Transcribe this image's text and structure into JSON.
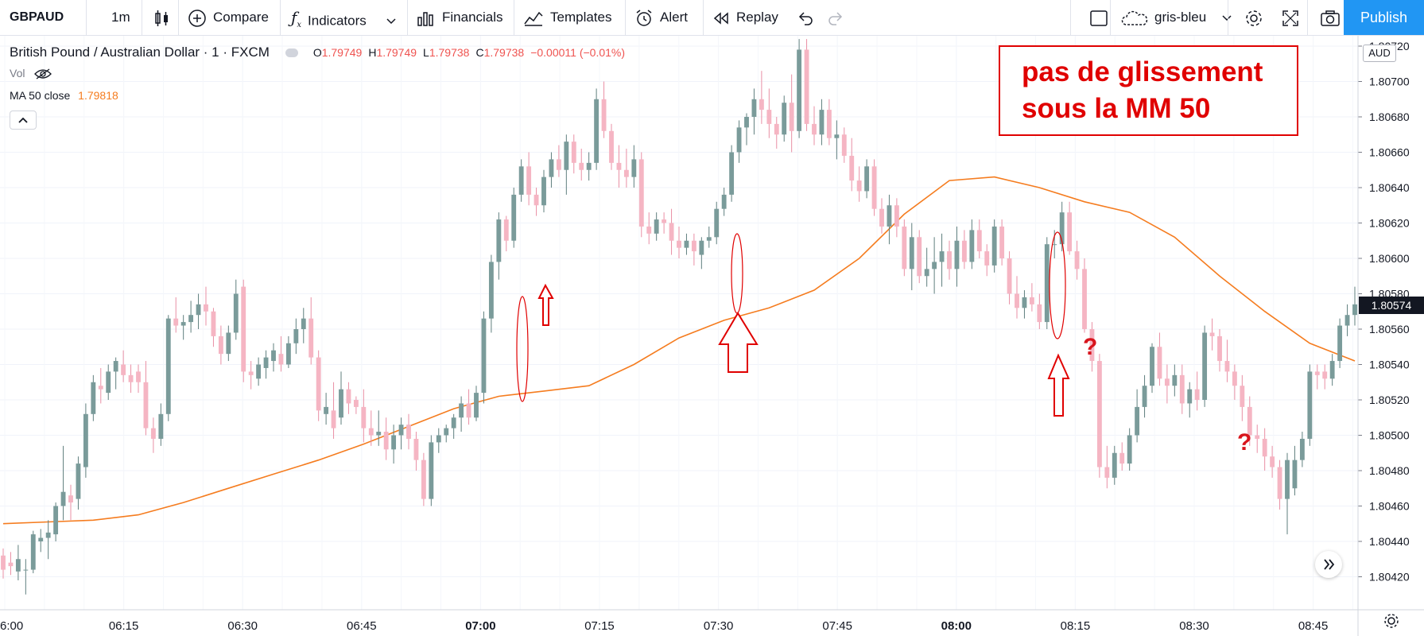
{
  "toolbar": {
    "symbol": "GBPAUD",
    "interval": "1m",
    "compare": "Compare",
    "indicators": "Indicators",
    "financials": "Financials",
    "templates": "Templates",
    "alert": "Alert",
    "replay": "Replay",
    "theme": "gris-bleu",
    "publish": "Publish"
  },
  "legend": {
    "name": "British Pound / Australian Dollar · 1 · FXCM",
    "o_label": "O",
    "o": "1.79749",
    "h_label": "H",
    "h": "1.79749",
    "l_label": "L",
    "l": "1.79738",
    "c_label": "C",
    "c": "1.79738",
    "change": "−0.00011 (−0.01%)",
    "vol": "Vol",
    "ma_label": "MA 50 close",
    "ma_value": "1.79818"
  },
  "annotation": {
    "text": "pas de glissement\nsous la MM 50",
    "question_mark": "?"
  },
  "price_badge": "1.80574",
  "currency": "AUD",
  "colors": {
    "up": "#7a9b9a",
    "down": "#f5b5c3",
    "ma": "#f57c1f",
    "annotation": "#e00000",
    "publish": "#2196f3"
  },
  "chart_data": {
    "type": "candlestick",
    "title": "British Pound / Australian Dollar · 1 · FXCM",
    "x_ticks": [
      "6:00",
      "06:15",
      "06:30",
      "06:45",
      "07:00",
      "07:15",
      "07:30",
      "07:45",
      "08:00",
      "08:15",
      "08:30",
      "08:45"
    ],
    "y_ticks": [
      "1.80720",
      "1.80700",
      "1.80680",
      "1.80660",
      "1.80640",
      "1.80620",
      "1.80600",
      "1.80580",
      "1.80560",
      "1.80540",
      "1.80520",
      "1.80500",
      "1.80480",
      "1.80460",
      "1.80440",
      "1.80420"
    ],
    "ylim": [
      1.80408,
      1.80726
    ],
    "candles": [
      [
        1.80432,
        1.80436,
        1.80419,
        1.80424
      ],
      [
        1.80428,
        1.80434,
        1.80421,
        1.80426
      ],
      [
        1.80423,
        1.80438,
        1.80418,
        1.8043
      ],
      [
        1.80424,
        1.8043,
        1.8041,
        1.80424
      ],
      [
        1.80424,
        1.80446,
        1.80422,
        1.80444
      ],
      [
        1.8044,
        1.80447,
        1.80434,
        1.80442
      ],
      [
        1.80442,
        1.80452,
        1.8043,
        1.80445
      ],
      [
        1.80444,
        1.80462,
        1.8044,
        1.8046
      ],
      [
        1.8046,
        1.80494,
        1.80452,
        1.80468
      ],
      [
        1.80466,
        1.80472,
        1.80452,
        1.80462
      ],
      [
        1.80464,
        1.80488,
        1.80458,
        1.80484
      ],
      [
        1.80482,
        1.80518,
        1.80476,
        1.80512
      ],
      [
        1.80512,
        1.80534,
        1.80508,
        1.8053
      ],
      [
        1.80528,
        1.80538,
        1.80518,
        1.80526
      ],
      [
        1.80524,
        1.8054,
        1.8052,
        1.80536
      ],
      [
        1.80536,
        1.80544,
        1.80526,
        1.80542
      ],
      [
        1.8054,
        1.80548,
        1.8053,
        1.80534
      ],
      [
        1.80534,
        1.8054,
        1.80524,
        1.8053
      ],
      [
        1.80536,
        1.8054,
        1.80524,
        1.8053
      ],
      [
        1.8053,
        1.80542,
        1.805,
        1.80504
      ],
      [
        1.80504,
        1.8051,
        1.8049,
        1.80498
      ],
      [
        1.80498,
        1.80518,
        1.80494,
        1.80512
      ],
      [
        1.80512,
        1.80568,
        1.80508,
        1.80566
      ],
      [
        1.80566,
        1.80578,
        1.80558,
        1.80562
      ],
      [
        1.80562,
        1.80568,
        1.80554,
        1.80564
      ],
      [
        1.80564,
        1.80576,
        1.80558,
        1.80568
      ],
      [
        1.80568,
        1.8058,
        1.8056,
        1.80574
      ],
      [
        1.80574,
        1.80584,
        1.80562,
        1.8057
      ],
      [
        1.8057,
        1.80572,
        1.8055,
        1.80556
      ],
      [
        1.80556,
        1.80562,
        1.8054,
        1.80546
      ],
      [
        1.80546,
        1.80562,
        1.80542,
        1.80558
      ],
      [
        1.80558,
        1.80588,
        1.80554,
        1.8058
      ],
      [
        1.80584,
        1.80588,
        1.8053,
        1.80536
      ],
      [
        1.80536,
        1.80542,
        1.80526,
        1.80534
      ],
      [
        1.80532,
        1.80544,
        1.80528,
        1.8054
      ],
      [
        1.80538,
        1.80548,
        1.80532,
        1.80544
      ],
      [
        1.80542,
        1.80552,
        1.80536,
        1.80548
      ],
      [
        1.80546,
        1.80556,
        1.80536,
        1.8054
      ],
      [
        1.8054,
        1.80556,
        1.80538,
        1.80552
      ],
      [
        1.80552,
        1.80566,
        1.80546,
        1.8056
      ],
      [
        1.8056,
        1.80572,
        1.80552,
        1.80566
      ],
      [
        1.80566,
        1.80578,
        1.8054,
        1.80544
      ],
      [
        1.80544,
        1.80548,
        1.80508,
        1.80514
      ],
      [
        1.80512,
        1.80524,
        1.80506,
        1.80516
      ],
      [
        1.80514,
        1.8053,
        1.80498,
        1.80504
      ],
      [
        1.8051,
        1.80536,
        1.80506,
        1.80526
      ],
      [
        1.80526,
        1.8053,
        1.80512,
        1.80518
      ],
      [
        1.8052,
        1.80522,
        1.80512,
        1.80516
      ],
      [
        1.80516,
        1.80526,
        1.80496,
        1.80504
      ],
      [
        1.80504,
        1.80514,
        1.80494,
        1.805
      ],
      [
        1.805,
        1.80514,
        1.80494,
        1.80502
      ],
      [
        1.80502,
        1.8051,
        1.80486,
        1.80492
      ],
      [
        1.80492,
        1.80506,
        1.80484,
        1.805
      ],
      [
        1.805,
        1.8051,
        1.80492,
        1.80506
      ],
      [
        1.80506,
        1.80512,
        1.80492,
        1.80498
      ],
      [
        1.80498,
        1.80502,
        1.8048,
        1.80486
      ],
      [
        1.80486,
        1.8049,
        1.8046,
        1.80464
      ],
      [
        1.80464,
        1.805,
        1.8046,
        1.80496
      ],
      [
        1.80496,
        1.80504,
        1.8049,
        1.805
      ],
      [
        1.805,
        1.80506,
        1.80496,
        1.80504
      ],
      [
        1.80504,
        1.80512,
        1.80498,
        1.8051
      ],
      [
        1.8051,
        1.80522,
        1.80502,
        1.80518
      ],
      [
        1.80518,
        1.80526,
        1.80506,
        1.8051
      ],
      [
        1.8051,
        1.80528,
        1.80508,
        1.80524
      ],
      [
        1.80524,
        1.8057,
        1.80518,
        1.80566
      ],
      [
        1.80566,
        1.80602,
        1.80558,
        1.80598
      ],
      [
        1.80598,
        1.80626,
        1.80588,
        1.80622
      ],
      [
        1.80622,
        1.80624,
        1.80604,
        1.8061
      ],
      [
        1.8061,
        1.8064,
        1.80606,
        1.80636
      ],
      [
        1.80636,
        1.80656,
        1.80632,
        1.80652
      ],
      [
        1.80652,
        1.8066,
        1.8063,
        1.80636
      ],
      [
        1.80636,
        1.8064,
        1.80624,
        1.8063
      ],
      [
        1.8063,
        1.8065,
        1.80626,
        1.80646
      ],
      [
        1.80646,
        1.8066,
        1.8064,
        1.80656
      ],
      [
        1.80656,
        1.80664,
        1.80646,
        1.8065
      ],
      [
        1.8065,
        1.8067,
        1.80636,
        1.80666
      ],
      [
        1.80666,
        1.8067,
        1.80648,
        1.80654
      ],
      [
        1.80654,
        1.80662,
        1.80644,
        1.8065
      ],
      [
        1.8065,
        1.8066,
        1.80644,
        1.80654
      ],
      [
        1.80654,
        1.80696,
        1.8065,
        1.8069
      ],
      [
        1.8069,
        1.807,
        1.80668,
        1.80672
      ],
      [
        1.80672,
        1.80676,
        1.8065,
        1.80654
      ],
      [
        1.80654,
        1.80664,
        1.8064,
        1.8065
      ],
      [
        1.8065,
        1.80662,
        1.8064,
        1.80646
      ],
      [
        1.80646,
        1.80664,
        1.8064,
        1.80656
      ],
      [
        1.80656,
        1.8066,
        1.80612,
        1.80618
      ],
      [
        1.80618,
        1.80626,
        1.80608,
        1.80614
      ],
      [
        1.80614,
        1.80626,
        1.8061,
        1.80622
      ],
      [
        1.80622,
        1.80626,
        1.80614,
        1.8062
      ],
      [
        1.8062,
        1.80628,
        1.80602,
        1.8061
      ],
      [
        1.8061,
        1.80618,
        1.806,
        1.80606
      ],
      [
        1.80606,
        1.80614,
        1.80602,
        1.8061
      ],
      [
        1.8061,
        1.80614,
        1.80596,
        1.80604
      ],
      [
        1.80602,
        1.80612,
        1.80594,
        1.8061
      ],
      [
        1.8061,
        1.80618,
        1.80606,
        1.80612
      ],
      [
        1.80612,
        1.80632,
        1.80608,
        1.80628
      ],
      [
        1.80628,
        1.8064,
        1.80624,
        1.80636
      ],
      [
        1.80636,
        1.80664,
        1.80632,
        1.8066
      ],
      [
        1.8066,
        1.80678,
        1.80654,
        1.80674
      ],
      [
        1.80674,
        1.80682,
        1.80664,
        1.8068
      ],
      [
        1.8068,
        1.80696,
        1.8067,
        1.8069
      ],
      [
        1.8069,
        1.80706,
        1.80676,
        1.80684
      ],
      [
        1.80684,
        1.80696,
        1.80668,
        1.80676
      ],
      [
        1.80676,
        1.8068,
        1.80662,
        1.8067
      ],
      [
        1.8067,
        1.80692,
        1.80666,
        1.80688
      ],
      [
        1.80688,
        1.80704,
        1.8066,
        1.80672
      ],
      [
        1.80672,
        1.80724,
        1.80668,
        1.80718
      ],
      [
        1.80718,
        1.80724,
        1.80672,
        1.80676
      ],
      [
        1.80676,
        1.80686,
        1.80664,
        1.8067
      ],
      [
        1.8067,
        1.8069,
        1.80664,
        1.80684
      ],
      [
        1.80684,
        1.8069,
        1.80664,
        1.80668
      ],
      [
        1.80668,
        1.80678,
        1.80656,
        1.8067
      ],
      [
        1.8067,
        1.80674,
        1.80654,
        1.80658
      ],
      [
        1.80658,
        1.80668,
        1.80638,
        1.80644
      ],
      [
        1.80644,
        1.80652,
        1.80632,
        1.80638
      ],
      [
        1.80638,
        1.80656,
        1.80634,
        1.80652
      ],
      [
        1.80652,
        1.80656,
        1.80624,
        1.80628
      ],
      [
        1.80628,
        1.80634,
        1.80614,
        1.80618
      ],
      [
        1.80618,
        1.80636,
        1.80608,
        1.8063
      ],
      [
        1.8063,
        1.80634,
        1.80612,
        1.80618
      ],
      [
        1.80618,
        1.80622,
        1.8059,
        1.80594
      ],
      [
        1.80594,
        1.8062,
        1.80582,
        1.80612
      ],
      [
        1.80612,
        1.80616,
        1.80586,
        1.8059
      ],
      [
        1.8059,
        1.80606,
        1.80584,
        1.80594
      ],
      [
        1.80594,
        1.80612,
        1.8058,
        1.80598
      ],
      [
        1.80598,
        1.80614,
        1.80584,
        1.80604
      ],
      [
        1.80604,
        1.8061,
        1.80588,
        1.80594
      ],
      [
        1.80594,
        1.80618,
        1.80584,
        1.8061
      ],
      [
        1.8061,
        1.80616,
        1.80594,
        1.80598
      ],
      [
        1.80598,
        1.80622,
        1.80594,
        1.80616
      ],
      [
        1.80616,
        1.80622,
        1.806,
        1.80604
      ],
      [
        1.80604,
        1.80608,
        1.8059,
        1.80596
      ],
      [
        1.80596,
        1.80622,
        1.80592,
        1.80618
      ],
      [
        1.80618,
        1.80622,
        1.80596,
        1.806
      ],
      [
        1.806,
        1.80604,
        1.80574,
        1.8058
      ],
      [
        1.8058,
        1.8059,
        1.80566,
        1.80572
      ],
      [
        1.80572,
        1.80582,
        1.80566,
        1.80578
      ],
      [
        1.80578,
        1.80586,
        1.8057,
        1.80574
      ],
      [
        1.80574,
        1.8058,
        1.8056,
        1.80564
      ],
      [
        1.80564,
        1.80612,
        1.8056,
        1.80608
      ],
      [
        1.80608,
        1.80616,
        1.806,
        1.80608
      ],
      [
        1.80608,
        1.80632,
        1.80604,
        1.80626
      ],
      [
        1.80626,
        1.80632,
        1.80602,
        1.80604
      ],
      [
        1.80604,
        1.8061,
        1.80588,
        1.80594
      ],
      [
        1.80594,
        1.806,
        1.80558,
        1.8056
      ],
      [
        1.8056,
        1.80564,
        1.80536,
        1.80542
      ],
      [
        1.80542,
        1.80546,
        1.80476,
        1.80482
      ],
      [
        1.80482,
        1.80494,
        1.8047,
        1.80476
      ],
      [
        1.80476,
        1.80494,
        1.80472,
        1.8049
      ],
      [
        1.8049,
        1.80496,
        1.8048,
        1.80484
      ],
      [
        1.80484,
        1.80504,
        1.8048,
        1.805
      ],
      [
        1.805,
        1.80526,
        1.80496,
        1.80516
      ],
      [
        1.80516,
        1.80534,
        1.8051,
        1.80528
      ],
      [
        1.80528,
        1.80552,
        1.80524,
        1.8055
      ],
      [
        1.8055,
        1.80558,
        1.80528,
        1.80532
      ],
      [
        1.80532,
        1.8054,
        1.80518,
        1.80528
      ],
      [
        1.80528,
        1.8054,
        1.80522,
        1.80534
      ],
      [
        1.80534,
        1.8054,
        1.80512,
        1.80518
      ],
      [
        1.80518,
        1.8053,
        1.8051,
        1.80526
      ],
      [
        1.80526,
        1.80536,
        1.80514,
        1.8052
      ],
      [
        1.8052,
        1.80562,
        1.80516,
        1.80558
      ],
      [
        1.80558,
        1.80566,
        1.80548,
        1.80556
      ],
      [
        1.80556,
        1.8056,
        1.80536,
        1.80542
      ],
      [
        1.80542,
        1.80554,
        1.8053,
        1.80536
      ],
      [
        1.80536,
        1.8054,
        1.8052,
        1.80528
      ],
      [
        1.80528,
        1.80534,
        1.80508,
        1.80516
      ],
      [
        1.80516,
        1.80522,
        1.80494,
        1.805
      ],
      [
        1.805,
        1.80506,
        1.8049,
        1.80498
      ],
      [
        1.80498,
        1.80504,
        1.8048,
        1.80488
      ],
      [
        1.80488,
        1.80494,
        1.80476,
        1.80482
      ],
      [
        1.80482,
        1.80486,
        1.80458,
        1.80464
      ],
      [
        1.80464,
        1.8049,
        1.80444,
        1.80486
      ],
      [
        1.8047,
        1.80494,
        1.80466,
        1.80486
      ],
      [
        1.80486,
        1.80502,
        1.80482,
        1.80498
      ],
      [
        1.80498,
        1.8054,
        1.80494,
        1.80536
      ],
      [
        1.80536,
        1.8054,
        1.80526,
        1.80534
      ],
      [
        1.80536,
        1.8054,
        1.80526,
        1.80532
      ],
      [
        1.80532,
        1.80546,
        1.80528,
        1.80542
      ],
      [
        1.80542,
        1.80566,
        1.80538,
        1.80562
      ],
      [
        1.80562,
        1.80574,
        1.80556,
        1.80568
      ],
      [
        1.80568,
        1.80584,
        1.80562,
        1.80574
      ]
    ],
    "ma50": [
      [
        1.8045,
        0
      ],
      [
        1.80451,
        10
      ],
      [
        1.80452,
        20
      ],
      [
        1.80455,
        30
      ],
      [
        1.80462,
        40
      ],
      [
        1.8047,
        50
      ],
      [
        1.80478,
        60
      ],
      [
        1.80486,
        70
      ],
      [
        1.80495,
        80
      ],
      [
        1.80505,
        90
      ],
      [
        1.80515,
        100
      ],
      [
        1.80522,
        110
      ],
      [
        1.80525,
        120
      ],
      [
        1.80528,
        130
      ],
      [
        1.8054,
        140
      ],
      [
        1.80555,
        150
      ],
      [
        1.80565,
        160
      ],
      [
        1.80572,
        170
      ],
      [
        1.80582,
        180
      ],
      [
        1.806,
        190
      ],
      [
        1.80625,
        200
      ],
      [
        1.80644,
        210
      ],
      [
        1.80646,
        220
      ],
      [
        1.8064,
        230
      ],
      [
        1.80632,
        240
      ],
      [
        1.80626,
        250
      ],
      [
        1.80612,
        260
      ],
      [
        1.8059,
        270
      ],
      [
        1.8057,
        280
      ],
      [
        1.80552,
        290
      ],
      [
        1.80542,
        300
      ]
    ],
    "ma_x_max": 300
  }
}
